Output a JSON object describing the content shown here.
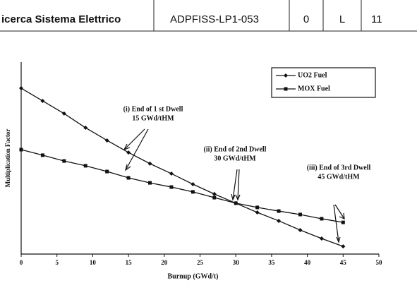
{
  "header": {
    "organization": "icerca Sistema Elettrico",
    "document_id": "ADPFISS-LP1-053",
    "revision": "0",
    "distribution": "L",
    "page": "11"
  },
  "chart_data": {
    "type": "line",
    "x_label": "Burnup (GWd/t)",
    "y_label": "Multiplication Factor",
    "x": [
      0,
      3,
      6,
      9,
      12,
      15,
      18,
      21,
      24,
      27,
      30,
      33,
      36,
      39,
      42,
      45
    ],
    "series": [
      {
        "name": "UO2 Fuel",
        "color": "#111111",
        "marker": "diamond",
        "values": [
          8.64,
          7.98,
          7.32,
          6.58,
          5.92,
          5.29,
          4.71,
          4.19,
          3.64,
          3.13,
          2.65,
          2.17,
          1.73,
          1.25,
          0.81,
          0.4
        ]
      },
      {
        "name": "MOX Fuel",
        "color": "#111111",
        "marker": "square",
        "values": [
          5.44,
          5.15,
          4.85,
          4.6,
          4.3,
          3.97,
          3.71,
          3.49,
          3.24,
          2.94,
          2.65,
          2.43,
          2.24,
          2.06,
          1.84,
          1.65
        ]
      }
    ],
    "xlim": [
      0,
      50
    ],
    "xticks": [
      0,
      5,
      10,
      15,
      20,
      25,
      30,
      35,
      40,
      45,
      50
    ],
    "ylim": [
      0,
      10
    ],
    "legend": "upper right",
    "annotations": [
      {
        "lines": [
          "(i) End of 1 st Dwell",
          "15 GWd/tHM"
        ]
      },
      {
        "lines": [
          "(ii) End of 2nd Dwell",
          "30 GWd/tHM"
        ]
      },
      {
        "lines": [
          "(iii) End of 3rd Dwell",
          "45 GWd/tHM"
        ]
      }
    ]
  }
}
